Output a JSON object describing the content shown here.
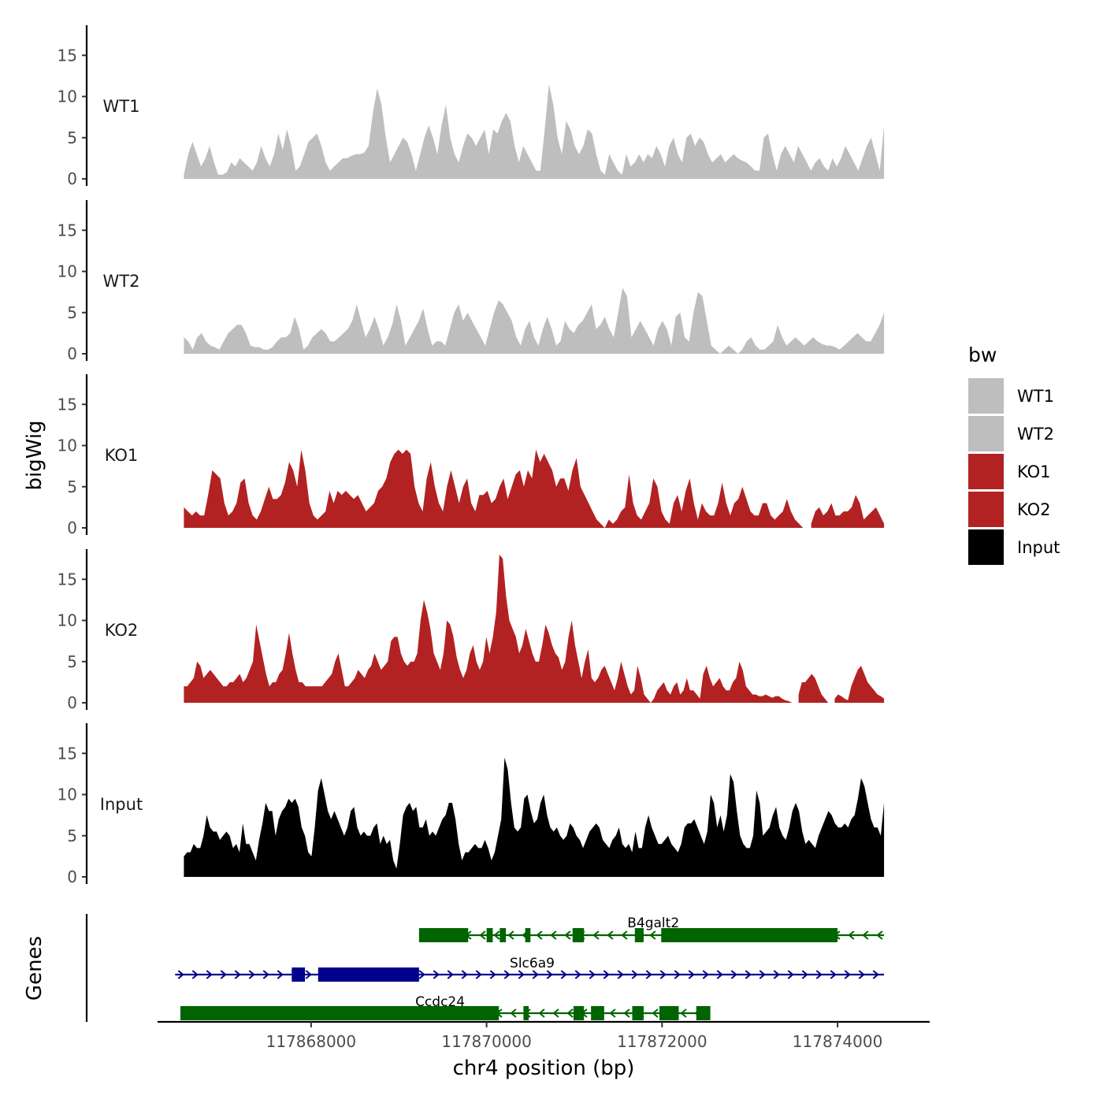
{
  "chart_data": {
    "type": "area",
    "ylabel": "bigWig",
    "xlabel": "chr4 position (bp)",
    "genes_label": "Genes",
    "ylim": [
      0,
      18.5
    ],
    "yticks": [
      0,
      5,
      10,
      15
    ],
    "xlim": [
      117866250,
      117875050
    ],
    "xticks": [
      117868000,
      117870000,
      117872000,
      117874000
    ],
    "x_start": 117866550,
    "x_end": 117874530,
    "legend": {
      "title": "bw",
      "entries": [
        {
          "label": "WT1",
          "color": "#bebebe"
        },
        {
          "label": "WT2",
          "color": "#bebebe"
        },
        {
          "label": "KO1",
          "color": "#b22222"
        },
        {
          "label": "KO2",
          "color": "#b22222"
        },
        {
          "label": "Input",
          "color": "#000000"
        }
      ]
    },
    "series": [
      {
        "name": "WT1",
        "color": "#bebebe",
        "values": [
          0.5,
          3,
          4.5,
          3,
          1.5,
          2.5,
          4,
          2,
          0.5,
          0.5,
          0.8,
          2,
          1.5,
          2.5,
          2,
          1.5,
          1,
          2,
          4,
          2.5,
          1.5,
          3,
          5.5,
          3.5,
          6,
          4,
          1,
          1.5,
          3,
          4.5,
          5,
          5.5,
          4,
          2,
          1,
          1.5,
          2,
          2.5,
          2.5,
          2.8,
          3,
          3,
          3.2,
          4,
          8,
          11,
          9,
          5,
          2,
          3,
          4,
          5,
          4.5,
          3,
          1,
          3,
          5,
          6.5,
          5,
          3,
          6.5,
          9,
          5,
          3,
          2,
          4,
          5.5,
          5,
          4,
          5,
          6,
          3,
          6,
          5.5,
          7,
          8,
          7,
          4,
          2,
          4,
          3,
          2,
          1,
          1,
          6,
          11.5,
          9,
          5,
          3,
          7,
          6,
          4,
          3,
          4,
          6,
          5.5,
          3,
          1,
          0.5,
          3,
          2,
          1,
          0.5,
          3,
          1.5,
          2,
          3,
          2,
          3,
          2.5,
          4,
          3,
          1.5,
          4,
          5,
          3,
          2,
          5,
          5.5,
          4,
          5,
          4.5,
          3,
          2,
          2.5,
          3,
          2,
          2.5,
          3,
          2.5,
          2.2,
          2,
          1.5,
          1,
          1,
          5,
          5.5,
          3,
          1,
          3,
          4,
          3,
          2,
          4,
          3,
          2,
          1,
          2,
          2.5,
          1.5,
          1,
          2.5,
          1.5,
          2.5,
          4,
          3,
          2,
          1,
          2.5,
          4,
          5,
          3,
          1,
          6.5
        ]
      },
      {
        "name": "WT2",
        "color": "#bebebe",
        "values": [
          2,
          1.5,
          0.5,
          2,
          2.5,
          1.5,
          1,
          0.8,
          0.5,
          1.5,
          2.5,
          3,
          3.5,
          3.5,
          2.5,
          1,
          0.8,
          0.8,
          0.5,
          0.5,
          0.8,
          1.5,
          2,
          2,
          2.5,
          4.5,
          3,
          0.5,
          1,
          2,
          2.5,
          3,
          2.5,
          1.5,
          1.5,
          2,
          2.5,
          3,
          4,
          6,
          4,
          2,
          3,
          4.5,
          3,
          1,
          2,
          3.5,
          6,
          4,
          1,
          2,
          3,
          4,
          5.5,
          3,
          1,
          1.5,
          1.5,
          1,
          3,
          5,
          6,
          4,
          5,
          4,
          3,
          2,
          1,
          3,
          5,
          6.5,
          6,
          5,
          4,
          2,
          1,
          3,
          4,
          2,
          1,
          3,
          4.5,
          3,
          1,
          1.5,
          4,
          3,
          2.5,
          3.5,
          4,
          5,
          6,
          3,
          3.5,
          4.5,
          3,
          2,
          5,
          8,
          7,
          2,
          3,
          4,
          3,
          2,
          1,
          3,
          4,
          3,
          1,
          4.5,
          5,
          2,
          1.5,
          5,
          7.5,
          7,
          4,
          1,
          0.5,
          0,
          0.5,
          1,
          0.5,
          0,
          0.5,
          1.5,
          2,
          1,
          0.5,
          0.5,
          1,
          1.5,
          3.5,
          2,
          1,
          1.5,
          2,
          1.5,
          1,
          1.5,
          2,
          1.5,
          1.2,
          1,
          1,
          0.8,
          0.5,
          1,
          1.5,
          2,
          2.5,
          2,
          1.5,
          1.5,
          2.5,
          3.5,
          5
        ]
      },
      {
        "name": "KO1",
        "color": "#b22222",
        "values": [
          2.5,
          2,
          1.5,
          2,
          1.5,
          1.5,
          4,
          7,
          6.5,
          6,
          3,
          1.5,
          2,
          3,
          5.5,
          6,
          3,
          1.5,
          1,
          2,
          3.5,
          5,
          3.5,
          3.5,
          4,
          5.5,
          8,
          7,
          5,
          9.5,
          7,
          3,
          1.5,
          1,
          1.5,
          2,
          4.5,
          3,
          4.5,
          4,
          4.5,
          4,
          3.5,
          4,
          3,
          2,
          2.5,
          3,
          4.5,
          5,
          6,
          8,
          9,
          9.5,
          9,
          9.5,
          9,
          5,
          3,
          2,
          6,
          8,
          5,
          3,
          2,
          5,
          7,
          5,
          3,
          5,
          6,
          3,
          2,
          4,
          4,
          4.5,
          3,
          3.5,
          5,
          6,
          3.5,
          5,
          6.5,
          7,
          5,
          7,
          6,
          9.5,
          8,
          9,
          8,
          7,
          5,
          6,
          6,
          4.5,
          7,
          8.5,
          5,
          4,
          3,
          2,
          1,
          0.5,
          0,
          1,
          0.5,
          1,
          2,
          2.5,
          6.5,
          3,
          1.5,
          1,
          2,
          3,
          6,
          5,
          2,
          1,
          0.5,
          3,
          4,
          2,
          4.5,
          6,
          3,
          1,
          3,
          2,
          1.5,
          1.5,
          3,
          5.5,
          3,
          1.5,
          3,
          3.5,
          5,
          3.5,
          2,
          1.5,
          1.5,
          3,
          3,
          1.5,
          1,
          1.5,
          2,
          3.5,
          2,
          1,
          0.5,
          0,
          null,
          0.5,
          2,
          2.5,
          1.5,
          2,
          3,
          1.5,
          1.5,
          2,
          2,
          2.5,
          4,
          3,
          1,
          1.5,
          2,
          2.5,
          1.5,
          0.5
        ]
      },
      {
        "name": "KO2",
        "color": "#b22222",
        "values": [
          2,
          2,
          2.5,
          3,
          5,
          4.5,
          3,
          3.5,
          4,
          3.5,
          3,
          2.5,
          2,
          2,
          2.5,
          2.5,
          3,
          3.5,
          2.5,
          3,
          4,
          5,
          9.5,
          7.5,
          5.5,
          3.5,
          2,
          2.5,
          2.5,
          3.5,
          4,
          6,
          8.5,
          6,
          4,
          2.5,
          2.5,
          2,
          2,
          2,
          2,
          2,
          2,
          2.5,
          3,
          3.5,
          5,
          6,
          4,
          2,
          2,
          2.5,
          3,
          4,
          3.5,
          3,
          4,
          4.5,
          6,
          5,
          4,
          4.5,
          5,
          7.5,
          8,
          8,
          6,
          5,
          4.5,
          5,
          5,
          6,
          10,
          12.5,
          11,
          9,
          6,
          5,
          4,
          6,
          10,
          9.5,
          8,
          5.5,
          4,
          3,
          4,
          6,
          7,
          5,
          4,
          5,
          8,
          6,
          8,
          11,
          18,
          17.5,
          13,
          10,
          9,
          8,
          6,
          7,
          9,
          7.5,
          6,
          5,
          5,
          7,
          9.5,
          8.5,
          7,
          6,
          5.5,
          4,
          5,
          8,
          10,
          7,
          5,
          3,
          5,
          6.5,
          3,
          2.5,
          3,
          4,
          4.5,
          3.5,
          2.5,
          1.5,
          3,
          5,
          3.5,
          2,
          1,
          1.5,
          4.5,
          3,
          1,
          0.5,
          0,
          0.5,
          1.5,
          2,
          2.5,
          1.5,
          1,
          2,
          2.5,
          1,
          1.5,
          3,
          1.5,
          1.5,
          1,
          0.5,
          3.5,
          4.5,
          3,
          2,
          2.5,
          3,
          2,
          1.5,
          1.5,
          2.5,
          3,
          5,
          4,
          2,
          1.5,
          1,
          1,
          0.8,
          0.8,
          1,
          0.8,
          0.6,
          0.8,
          0.8,
          0.5,
          0.3,
          0.2,
          0,
          null,
          1,
          2.5,
          2.5,
          3,
          3.5,
          3,
          2,
          1,
          0.5,
          0,
          null,
          0.5,
          1,
          0.8,
          0.5,
          0.3,
          2,
          3,
          4,
          4.5,
          3.5,
          2.5,
          2,
          1.5,
          1,
          0.8,
          0.5
        ]
      },
      {
        "name": "Input",
        "color": "#000000",
        "values": [
          2.5,
          3,
          3,
          4,
          3.5,
          3.5,
          5,
          7.5,
          6,
          5.5,
          5.5,
          4.5,
          5,
          5.5,
          5,
          3.5,
          4,
          3,
          6.5,
          4,
          4,
          3,
          2,
          4.5,
          6.5,
          9,
          8,
          8,
          5,
          7,
          8,
          8.5,
          9.5,
          9,
          9.5,
          8.5,
          6,
          5,
          3,
          2.5,
          6,
          10.5,
          12,
          10,
          8,
          7,
          8,
          7,
          6,
          5,
          6,
          8,
          8.5,
          6,
          5,
          5.5,
          5,
          5,
          6,
          6.5,
          4,
          5,
          4,
          4.5,
          2,
          1,
          4,
          7.5,
          8.5,
          9,
          8,
          8.5,
          6,
          6,
          7,
          5,
          5.5,
          5,
          6,
          7,
          7.5,
          9,
          9,
          7,
          4,
          2,
          3,
          3,
          3.5,
          4,
          3.5,
          3.5,
          4.5,
          3.5,
          2,
          3,
          5,
          7,
          14.5,
          13,
          9,
          6,
          5.5,
          6,
          9.5,
          10,
          8,
          6.5,
          7,
          9,
          10,
          7.5,
          6,
          5.5,
          6,
          5,
          4.5,
          5,
          6.5,
          6,
          5,
          4.5,
          3.5,
          4.5,
          5.5,
          6,
          6.5,
          6,
          4.5,
          4,
          3.5,
          4.5,
          5,
          6,
          4,
          3.5,
          4,
          3,
          5.5,
          3.5,
          3.5,
          6,
          7.5,
          6,
          5,
          4,
          4,
          4.5,
          5,
          4,
          3.5,
          3,
          4,
          6,
          6.5,
          6.5,
          7,
          6,
          5,
          4,
          5.5,
          10,
          9,
          6,
          7.5,
          5.5,
          7.5,
          12.5,
          11.5,
          8,
          5,
          4,
          3.5,
          3.5,
          5,
          10.5,
          9,
          5,
          5.5,
          6,
          7.5,
          8.5,
          6,
          5,
          4.5,
          6,
          8,
          9,
          8,
          5.5,
          4,
          4.5,
          4,
          3.5,
          5,
          6,
          7,
          8,
          7.5,
          6.5,
          6,
          6,
          6.5,
          6,
          7,
          7.5,
          9.5,
          12,
          11,
          9,
          7,
          6,
          6,
          5,
          9
        ]
      }
    ],
    "genes": [
      {
        "name": "B4galt2",
        "color": "#006400",
        "strand": "-",
        "start": 117869230,
        "end": 117874530,
        "exons": [
          [
            117869230,
            117869790
          ],
          [
            117870000,
            117870070
          ],
          [
            117870150,
            117870220
          ],
          [
            117870440,
            117870500
          ],
          [
            117870980,
            117871110
          ],
          [
            117871690,
            117871790
          ],
          [
            117871990,
            117874000
          ]
        ]
      },
      {
        "name": "Slc6a9",
        "color": "#00008b",
        "strand": "+",
        "start": 117866450,
        "end": 117874530,
        "exons": [
          [
            117867780,
            117867930
          ],
          [
            117868080,
            117869230
          ]
        ]
      },
      {
        "name": "Ccdc24",
        "color": "#006400",
        "strand": "-",
        "start": 117866510,
        "end": 117872550,
        "exons": [
          [
            117866510,
            117870140
          ],
          [
            117870420,
            117870480
          ],
          [
            117870990,
            117871110
          ],
          [
            117871190,
            117871340
          ],
          [
            117871660,
            117871790
          ],
          [
            117871970,
            117872190
          ],
          [
            117872390,
            117872550
          ]
        ]
      }
    ]
  }
}
